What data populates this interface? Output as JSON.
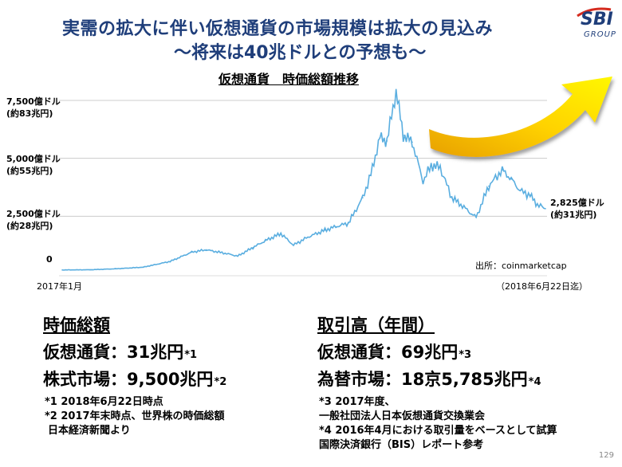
{
  "header": {
    "title_line1": "実需の拡大に伴い仮想通貨の市場規模は拡大の見込み",
    "title_line2": "～将来は40兆ドルとの予想も～",
    "logo_text": "SBI",
    "logo_sub": "GROUP"
  },
  "chart_data": {
    "type": "line",
    "title": "仮想通貨　時価総額推移",
    "x_start_label": "2017年1月",
    "x_end_label": "（2018年6月22日迄）",
    "ylim": [
      0,
      8200
    ],
    "y_ticks": [
      {
        "value": 7500,
        "label": "7,500億ドル",
        "sub": "(約83兆円)"
      },
      {
        "value": 5000,
        "label": "5,000億ドル",
        "sub": "(約55兆円)"
      },
      {
        "value": 2500,
        "label": "2,500億ドル",
        "sub": "(約28兆円)"
      },
      {
        "value": 0,
        "label": "0",
        "sub": ""
      }
    ],
    "end_label": "2,825億ドル",
    "end_label_sub": "(約31兆円)",
    "source": "出所：coinmarketcap",
    "line_color": "#5aaee0",
    "grid_color": "#cccccc",
    "x": [
      "2017-01-01",
      "2017-02-01",
      "2017-03-01",
      "2017-04-01",
      "2017-05-01",
      "2017-05-25",
      "2017-06-10",
      "2017-07-01",
      "2017-07-15",
      "2017-08-01",
      "2017-08-15",
      "2017-09-01",
      "2017-09-15",
      "2017-10-01",
      "2017-10-20",
      "2017-11-01",
      "2017-11-15",
      "2017-12-01",
      "2017-12-10",
      "2017-12-20",
      "2017-12-28",
      "2018-01-07",
      "2018-01-15",
      "2018-01-25",
      "2018-02-06",
      "2018-02-15",
      "2018-02-25",
      "2018-03-10",
      "2018-03-20",
      "2018-04-01",
      "2018-04-06",
      "2018-04-20",
      "2018-05-05",
      "2018-05-15",
      "2018-05-25",
      "2018-06-05",
      "2018-06-13",
      "2018-06-22"
    ],
    "values": [
      180,
      190,
      230,
      300,
      550,
      950,
      1050,
      900,
      780,
      1150,
      1450,
      1750,
      1250,
      1600,
      1900,
      2050,
      2200,
      3300,
      4300,
      5900,
      5750,
      7900,
      6000,
      5700,
      4000,
      4700,
      4600,
      3300,
      3000,
      2600,
      2450,
      3800,
      4500,
      4100,
      3600,
      3400,
      3000,
      2825
    ],
    "arrow": {
      "color_from": "#e8a000",
      "color_to": "#fff700"
    }
  },
  "left_panel": {
    "heading": "時価総額",
    "row1_label": "仮想通貨：",
    "row1_value": "31兆円",
    "row1_note": "*1",
    "row2_label": "株式市場：",
    "row2_value": "9,500兆円",
    "row2_note": "*2",
    "notes": [
      "*1 2018年6月22日時点",
      "*2 2017年末時点、世界株の時価総額",
      "日本経済新聞より"
    ]
  },
  "right_panel": {
    "heading": "取引高（年間）",
    "row1_label": "仮想通貨：",
    "row1_value": "69兆円",
    "row1_note": "*3",
    "row2_label": "為替市場：",
    "row2_value": "18京5,785兆円",
    "row2_note": "*4",
    "notes": [
      "*3 2017年度、",
      "一般社団法人日本仮想通貨交換業会",
      "*4 2016年4月における取引量をベースとして試算",
      "国際決済銀行（BIS）レポート参考"
    ]
  },
  "page_number": "129"
}
